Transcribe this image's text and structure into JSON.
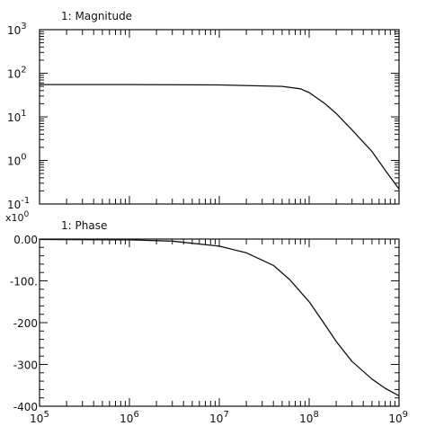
{
  "chart_data": [
    {
      "type": "line",
      "title": "1:  Magnitude",
      "xscale": "log",
      "yscale": "log",
      "xlim": [
        100000,
        1000000000
      ],
      "ylim": [
        0.1,
        1000
      ],
      "x_tick_labels": [
        {
          "base": "10",
          "exp": "5"
        },
        {
          "base": "10",
          "exp": "6"
        },
        {
          "base": "10",
          "exp": "7"
        },
        {
          "base": "10",
          "exp": "8"
        },
        {
          "base": "10",
          "exp": "9"
        }
      ],
      "y_tick_labels": [
        {
          "base": "10",
          "exp": "3"
        },
        {
          "base": "10",
          "exp": "2"
        },
        {
          "base": "10",
          "exp": "1"
        },
        {
          "base": "10",
          "exp": "0"
        },
        {
          "base": "10",
          "exp": "-1"
        }
      ],
      "series": [
        {
          "x": [
            100000,
            1000000,
            10000000,
            50000000,
            80000000,
            100000000,
            150000000,
            200000000,
            300000000,
            500000000,
            700000000,
            1000000000
          ],
          "y": [
            55,
            55,
            54,
            50,
            44,
            36,
            20,
            12,
            5,
            1.6,
            0.6,
            0.22
          ]
        }
      ]
    },
    {
      "type": "line",
      "title": "1:  Phase",
      "xscale": "log",
      "xlim": [
        100000,
        1000000000
      ],
      "ylim": [
        -400,
        0
      ],
      "y_multiplier_label": {
        "prefix": "x10",
        "exp": "0"
      },
      "y_tick_labels": [
        "0.00",
        "-100.",
        "-200",
        "-300",
        "-400"
      ],
      "series": [
        {
          "x": [
            100000,
            1000000,
            3000000,
            10000000,
            20000000,
            40000000,
            60000000,
            100000000,
            150000000,
            200000000,
            300000000,
            500000000,
            700000000,
            1000000000
          ],
          "y": [
            -1,
            -2,
            -5,
            -17,
            -33,
            -63,
            -96,
            -150,
            -205,
            -245,
            -293,
            -335,
            -357,
            -375
          ]
        }
      ]
    }
  ]
}
